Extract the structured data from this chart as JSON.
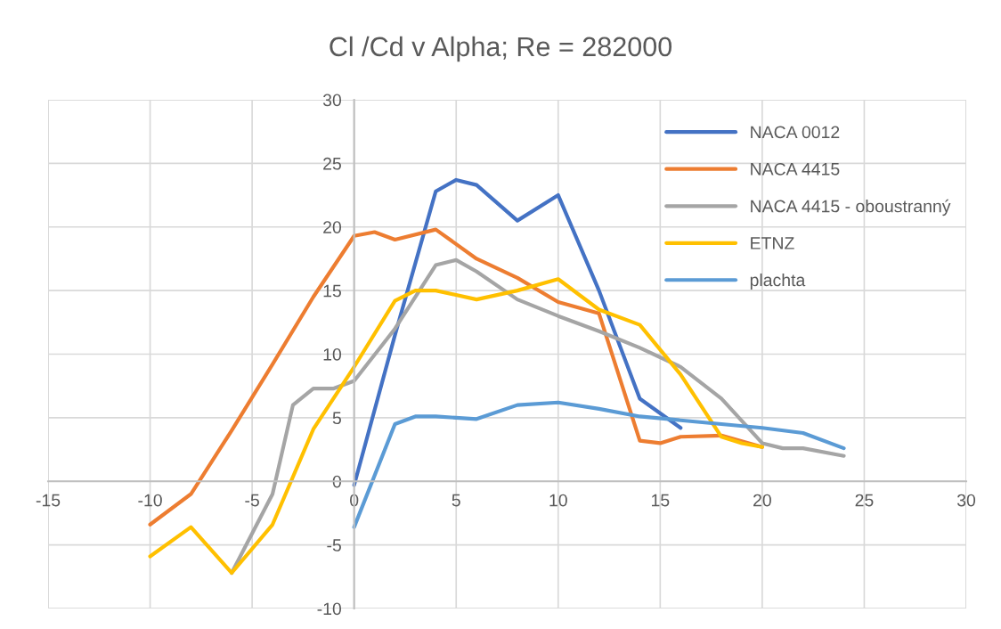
{
  "chart_data": {
    "type": "line",
    "title": "Cl /Cd v Alpha; Re = 282000",
    "xlim": [
      -15,
      30
    ],
    "xticks": [
      -15,
      -10,
      -5,
      0,
      5,
      10,
      15,
      20,
      25,
      30
    ],
    "ylim": [
      -10,
      30
    ],
    "yticks": [
      -10,
      -5,
      0,
      5,
      10,
      15,
      20,
      25,
      30
    ],
    "grid": true,
    "legend": "top right",
    "marker": "none",
    "line_style": "solid",
    "series": [
      {
        "name": "NACA 0012",
        "color": "#4472c4",
        "x": [
          0,
          2,
          4,
          5,
          6,
          8,
          10,
          12,
          14,
          16
        ],
        "values": [
          -0.3,
          11.5,
          22.8,
          23.7,
          23.3,
          20.5,
          22.5,
          15,
          6.5,
          4.2
        ]
      },
      {
        "name": "NACA 4415",
        "color": "#ed7d31",
        "x": [
          -10,
          -8,
          -6,
          -4,
          -2,
          0,
          1,
          2,
          4,
          6,
          8,
          10,
          12,
          14,
          15,
          16,
          18,
          20
        ],
        "values": [
          -3.4,
          -1,
          4,
          9.2,
          14.5,
          19.3,
          19.6,
          19,
          19.8,
          17.5,
          16,
          14.1,
          13.2,
          3.2,
          3,
          3.5,
          3.6,
          2.7
        ]
      },
      {
        "name": "NACA 4415 - oboustranný",
        "color": "#a5a5a5",
        "x": [
          -6,
          -4,
          -3,
          -2,
          -1,
          0,
          2,
          4,
          5,
          6,
          8,
          10,
          12,
          14,
          16,
          18,
          20,
          21,
          22,
          24
        ],
        "values": [
          -7.2,
          -1,
          6,
          7.3,
          7.3,
          7.9,
          12,
          17,
          17.4,
          16.5,
          14.3,
          13,
          11.8,
          10.5,
          9,
          6.5,
          3,
          2.6,
          2.6,
          2
        ]
      },
      {
        "name": "ETNZ",
        "color": "#ffc000",
        "x": [
          -10,
          -8,
          -6,
          -4,
          -2,
          0,
          2,
          3,
          4,
          6,
          8,
          10,
          12,
          14,
          16,
          18,
          19,
          20
        ],
        "values": [
          -5.9,
          -3.6,
          -7.2,
          -3.4,
          4.1,
          9,
          14.2,
          15,
          15,
          14.3,
          15,
          15.9,
          13.5,
          12.3,
          8.4,
          3.5,
          3,
          2.7
        ]
      },
      {
        "name": "plachta",
        "color": "#5b9bd5",
        "x": [
          0,
          2,
          3,
          4,
          6,
          8,
          10,
          12,
          14,
          16,
          18,
          20,
          22,
          24
        ],
        "values": [
          -3.6,
          4.5,
          5.1,
          5.1,
          4.9,
          6,
          6.2,
          5.7,
          5.1,
          4.8,
          4.5,
          4.2,
          3.8,
          2.6
        ]
      }
    ]
  }
}
